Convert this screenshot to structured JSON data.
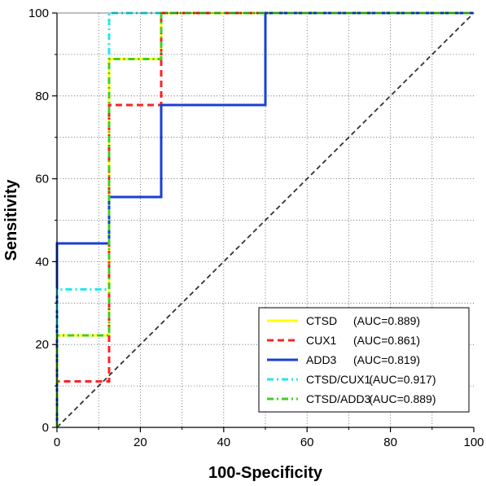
{
  "chart_data": {
    "type": "line",
    "title": "",
    "xlabel": "100-Specificity",
    "ylabel": "Sensitivity",
    "xlim": [
      0,
      100
    ],
    "ylim": [
      0,
      100
    ],
    "xticks": [
      "0",
      "20",
      "40",
      "60",
      "80",
      "100"
    ],
    "yticks": [
      "0",
      "20",
      "40",
      "60",
      "80",
      "100"
    ],
    "grid": true,
    "legend_position": "bottom-right",
    "reference_line": {
      "x": [
        0,
        100
      ],
      "y": [
        0,
        100
      ],
      "color": "#333333"
    },
    "series": [
      {
        "name": "CTSD",
        "auc_text": "(AUC=0.889)",
        "color": "#ffff00",
        "dash": "solid",
        "x": [
          0,
          0,
          12.5,
          12.5,
          25,
          25,
          100
        ],
        "y": [
          0,
          22.2,
          22.2,
          88.9,
          88.9,
          100,
          100
        ]
      },
      {
        "name": "CUX1",
        "auc_text": "(AUC=0.861)",
        "color": "#ff2222",
        "dash": "dashed",
        "x": [
          0,
          0,
          12.5,
          12.5,
          25,
          25,
          100
        ],
        "y": [
          0,
          11.1,
          11.1,
          77.8,
          77.8,
          100,
          100
        ]
      },
      {
        "name": "ADD3",
        "auc_text": "(AUC=0.819)",
        "color": "#1a3fd6",
        "dash": "solid",
        "x": [
          0,
          0,
          12.5,
          12.5,
          25,
          25,
          50,
          50,
          100
        ],
        "y": [
          0,
          44.4,
          44.4,
          55.6,
          55.6,
          77.8,
          77.8,
          100,
          100
        ]
      },
      {
        "name": "CTSD/CUX1",
        "auc_text": "(AUC=0.917)",
        "color": "#22e6ee",
        "dash": "dashdot",
        "x": [
          0,
          0,
          12.5,
          12.5,
          100
        ],
        "y": [
          0,
          33.3,
          33.3,
          100,
          100
        ]
      },
      {
        "name": "CTSD/ADD3",
        "auc_text": "(AUC=0.889)",
        "color": "#44cc22",
        "dash": "dashdot",
        "x": [
          0,
          0,
          12.5,
          12.5,
          25,
          25,
          100
        ],
        "y": [
          0,
          22.2,
          22.2,
          88.9,
          88.9,
          100,
          100
        ]
      }
    ]
  }
}
